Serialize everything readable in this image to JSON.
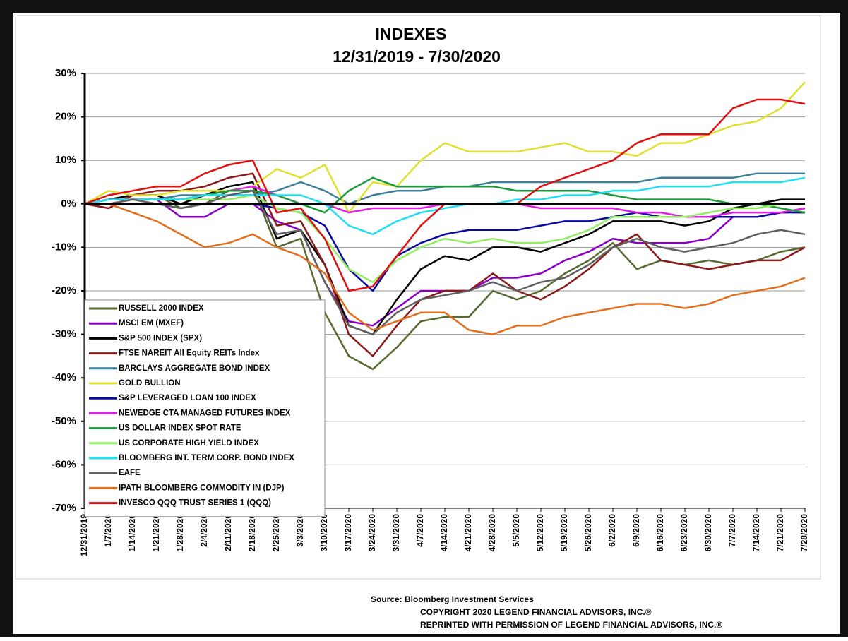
{
  "chart_data": {
    "type": "line",
    "title": "INDEXES",
    "subtitle": "12/31/2019 - 7/30/2020",
    "categories": [
      "12/31/2019",
      "1/7/2020",
      "1/14/2020",
      "1/21/2020",
      "1/28/2020",
      "2/4/2020",
      "2/11/2020",
      "2/18/2020",
      "2/25/2020",
      "3/3/2020",
      "3/10/2020",
      "3/17/2020",
      "3/24/2020",
      "3/31/2020",
      "4/7/2020",
      "4/14/2020",
      "4/21/2020",
      "4/28/2020",
      "5/5/2020",
      "5/12/2020",
      "5/19/2020",
      "5/26/2020",
      "6/2/2020",
      "6/9/2020",
      "6/16/2020",
      "6/23/2020",
      "6/30/2020",
      "7/7/2020",
      "7/14/2020",
      "7/21/2020",
      "7/28/2020"
    ],
    "ylim": [
      -70,
      30
    ],
    "yticks": [
      {
        "value": -70,
        "label": "-70%"
      },
      {
        "value": -60,
        "label": "-60%"
      },
      {
        "value": -50,
        "label": "-50%"
      },
      {
        "value": -40,
        "label": "-40%"
      },
      {
        "value": -30,
        "label": "-30%"
      },
      {
        "value": -20,
        "label": "-20%"
      },
      {
        "value": -10,
        "label": "-10%"
      },
      {
        "value": 0,
        "label": "0%"
      },
      {
        "value": 10,
        "label": "10%"
      },
      {
        "value": 20,
        "label": "20%"
      },
      {
        "value": 30,
        "label": "30%"
      }
    ],
    "grid": true,
    "legend": "lower left",
    "series": [
      {
        "name": "RUSSELL 2000 INDEX",
        "color": "#556b2f",
        "values": [
          0,
          1,
          2,
          2,
          -1,
          0,
          3,
          4,
          -10,
          -8,
          -25,
          -35,
          -38,
          -33,
          -27,
          -26,
          -26,
          -20,
          -22,
          -20,
          -16,
          -13,
          -9,
          -15,
          -13,
          -14,
          -13,
          -14,
          -13,
          -11,
          -10
        ]
      },
      {
        "name": "MSCI EM (MXEF)",
        "color": "#8b00c8",
        "values": [
          0,
          1,
          1,
          1,
          -3,
          -3,
          0,
          0,
          -4,
          -6,
          -18,
          -27,
          -28,
          -24,
          -20,
          -20,
          -20,
          -17,
          -17,
          -16,
          -13,
          -11,
          -8,
          -9,
          -9,
          -9,
          -8,
          -3,
          -3,
          -2,
          -1
        ]
      },
      {
        "name": "S&P 500 INDEX (SPX)",
        "color": "#000000",
        "values": [
          0,
          1,
          2,
          2,
          0,
          2,
          4,
          5,
          -8,
          -6,
          -14,
          -28,
          -30,
          -22,
          -15,
          -12,
          -13,
          -10,
          -10,
          -11,
          -9,
          -7,
          -4,
          -4,
          -4,
          -5,
          -4,
          -1,
          0,
          1,
          1
        ]
      },
      {
        "name": "FTSE NAREIT All Equity REITs Index",
        "color": "#8b1a1a",
        "values": [
          0,
          -1,
          2,
          3,
          3,
          4,
          6,
          7,
          -5,
          -4,
          -14,
          -30,
          -35,
          -28,
          -22,
          -20,
          -20,
          -16,
          -20,
          -22,
          -19,
          -15,
          -10,
          -7,
          -13,
          -14,
          -15,
          -14,
          -13,
          -13,
          -10
        ]
      },
      {
        "name": "BARCLAYS AGGREGATE BOND INDEX",
        "color": "#3c7f98",
        "values": [
          0,
          0,
          1,
          1,
          2,
          2,
          2,
          2,
          3,
          5,
          3,
          0,
          2,
          3,
          3,
          4,
          4,
          5,
          5,
          5,
          5,
          5,
          5,
          5,
          6,
          6,
          6,
          6,
          7,
          7,
          7
        ]
      },
      {
        "name": "GOLD BULLION",
        "color": "#e0e030",
        "values": [
          0,
          3,
          2,
          2,
          3,
          3,
          3,
          4,
          8,
          6,
          9,
          -2,
          5,
          4,
          10,
          14,
          12,
          12,
          12,
          13,
          14,
          12,
          12,
          11,
          14,
          14,
          16,
          18,
          19,
          22,
          28
        ]
      },
      {
        "name": "S&P LEVERAGED LOAN 100 INDEX",
        "color": "#0a0aa0",
        "values": [
          0,
          0,
          0,
          0,
          0,
          0,
          0,
          0,
          -1,
          -2,
          -5,
          -15,
          -20,
          -12,
          -9,
          -7,
          -6,
          -6,
          -6,
          -5,
          -4,
          -4,
          -3,
          -2,
          -3,
          -3,
          -3,
          -3,
          -3,
          -2,
          -2
        ]
      },
      {
        "name": "NEWEDGE CTA MANAGED FUTURES INDEX",
        "color": "#e020e0",
        "values": [
          0,
          1,
          1,
          1,
          1,
          2,
          3,
          4,
          2,
          0,
          0,
          -2,
          -1,
          -1,
          -1,
          0,
          0,
          0,
          0,
          -1,
          -1,
          -1,
          -1,
          -2,
          -2,
          -3,
          -3,
          -2,
          -2,
          -2,
          -1
        ]
      },
      {
        "name": "US DOLLAR INDEX SPOT RATE",
        "color": "#1a9a3a",
        "values": [
          0,
          0,
          1,
          1,
          1,
          2,
          3,
          3,
          2,
          0,
          -2,
          3,
          6,
          4,
          4,
          4,
          4,
          4,
          3,
          3,
          3,
          3,
          2,
          1,
          1,
          1,
          1,
          0,
          0,
          -1,
          -2
        ]
      },
      {
        "name": "US CORPORATE HIGH YIELD INDEX",
        "color": "#90ee60",
        "values": [
          0,
          0,
          1,
          1,
          1,
          1,
          1,
          2,
          -1,
          -2,
          -8,
          -15,
          -18,
          -13,
          -10,
          -8,
          -9,
          -8,
          -9,
          -9,
          -8,
          -6,
          -3,
          -3,
          -3,
          -3,
          -2,
          -1,
          -1,
          0,
          0
        ]
      },
      {
        "name": "BLOOMBERG INT. TERM CORP. BOND INDEX",
        "color": "#20e0f0",
        "values": [
          0,
          1,
          1,
          1,
          1,
          2,
          2,
          2,
          2,
          2,
          0,
          -5,
          -7,
          -4,
          -2,
          -1,
          0,
          0,
          1,
          1,
          2,
          2,
          3,
          3,
          4,
          4,
          4,
          5,
          5,
          5,
          6
        ]
      },
      {
        "name": "EAFE",
        "color": "#606060",
        "values": [
          0,
          0,
          1,
          0,
          -1,
          0,
          2,
          3,
          -7,
          -6,
          -18,
          -28,
          -30,
          -25,
          -22,
          -21,
          -20,
          -18,
          -20,
          -18,
          -17,
          -14,
          -10,
          -8,
          -10,
          -11,
          -10,
          -9,
          -7,
          -6,
          -7
        ]
      },
      {
        "name": "IPATH BLOOMBERG COMMODITY IN (DJP)",
        "color": "#e07020",
        "values": [
          0,
          0,
          -2,
          -4,
          -7,
          -10,
          -9,
          -7,
          -10,
          -12,
          -16,
          -25,
          -29,
          -27,
          -25,
          -25,
          -29,
          -30,
          -28,
          -28,
          -26,
          -25,
          -24,
          -23,
          -23,
          -24,
          -23,
          -21,
          -20,
          -19,
          -17
        ]
      },
      {
        "name": "INVESCO QQQ TRUST SERIES 1 (QQQ)",
        "color": "#e01010",
        "values": [
          0,
          2,
          3,
          4,
          4,
          7,
          9,
          10,
          -2,
          -1,
          -8,
          -20,
          -19,
          -12,
          -5,
          0,
          0,
          0,
          0,
          4,
          6,
          8,
          10,
          14,
          16,
          16,
          16,
          22,
          24,
          24,
          23
        ]
      }
    ]
  },
  "source": "Source: Bloomberg Investment Services",
  "copyright": "COPYRIGHT 2020  LEGEND FINANCIAL ADVISORS, INC.®",
  "reprint": "REPRINTED WITH PERMISSION OF LEGEND FINANCIAL ADVISORS, INC.®"
}
